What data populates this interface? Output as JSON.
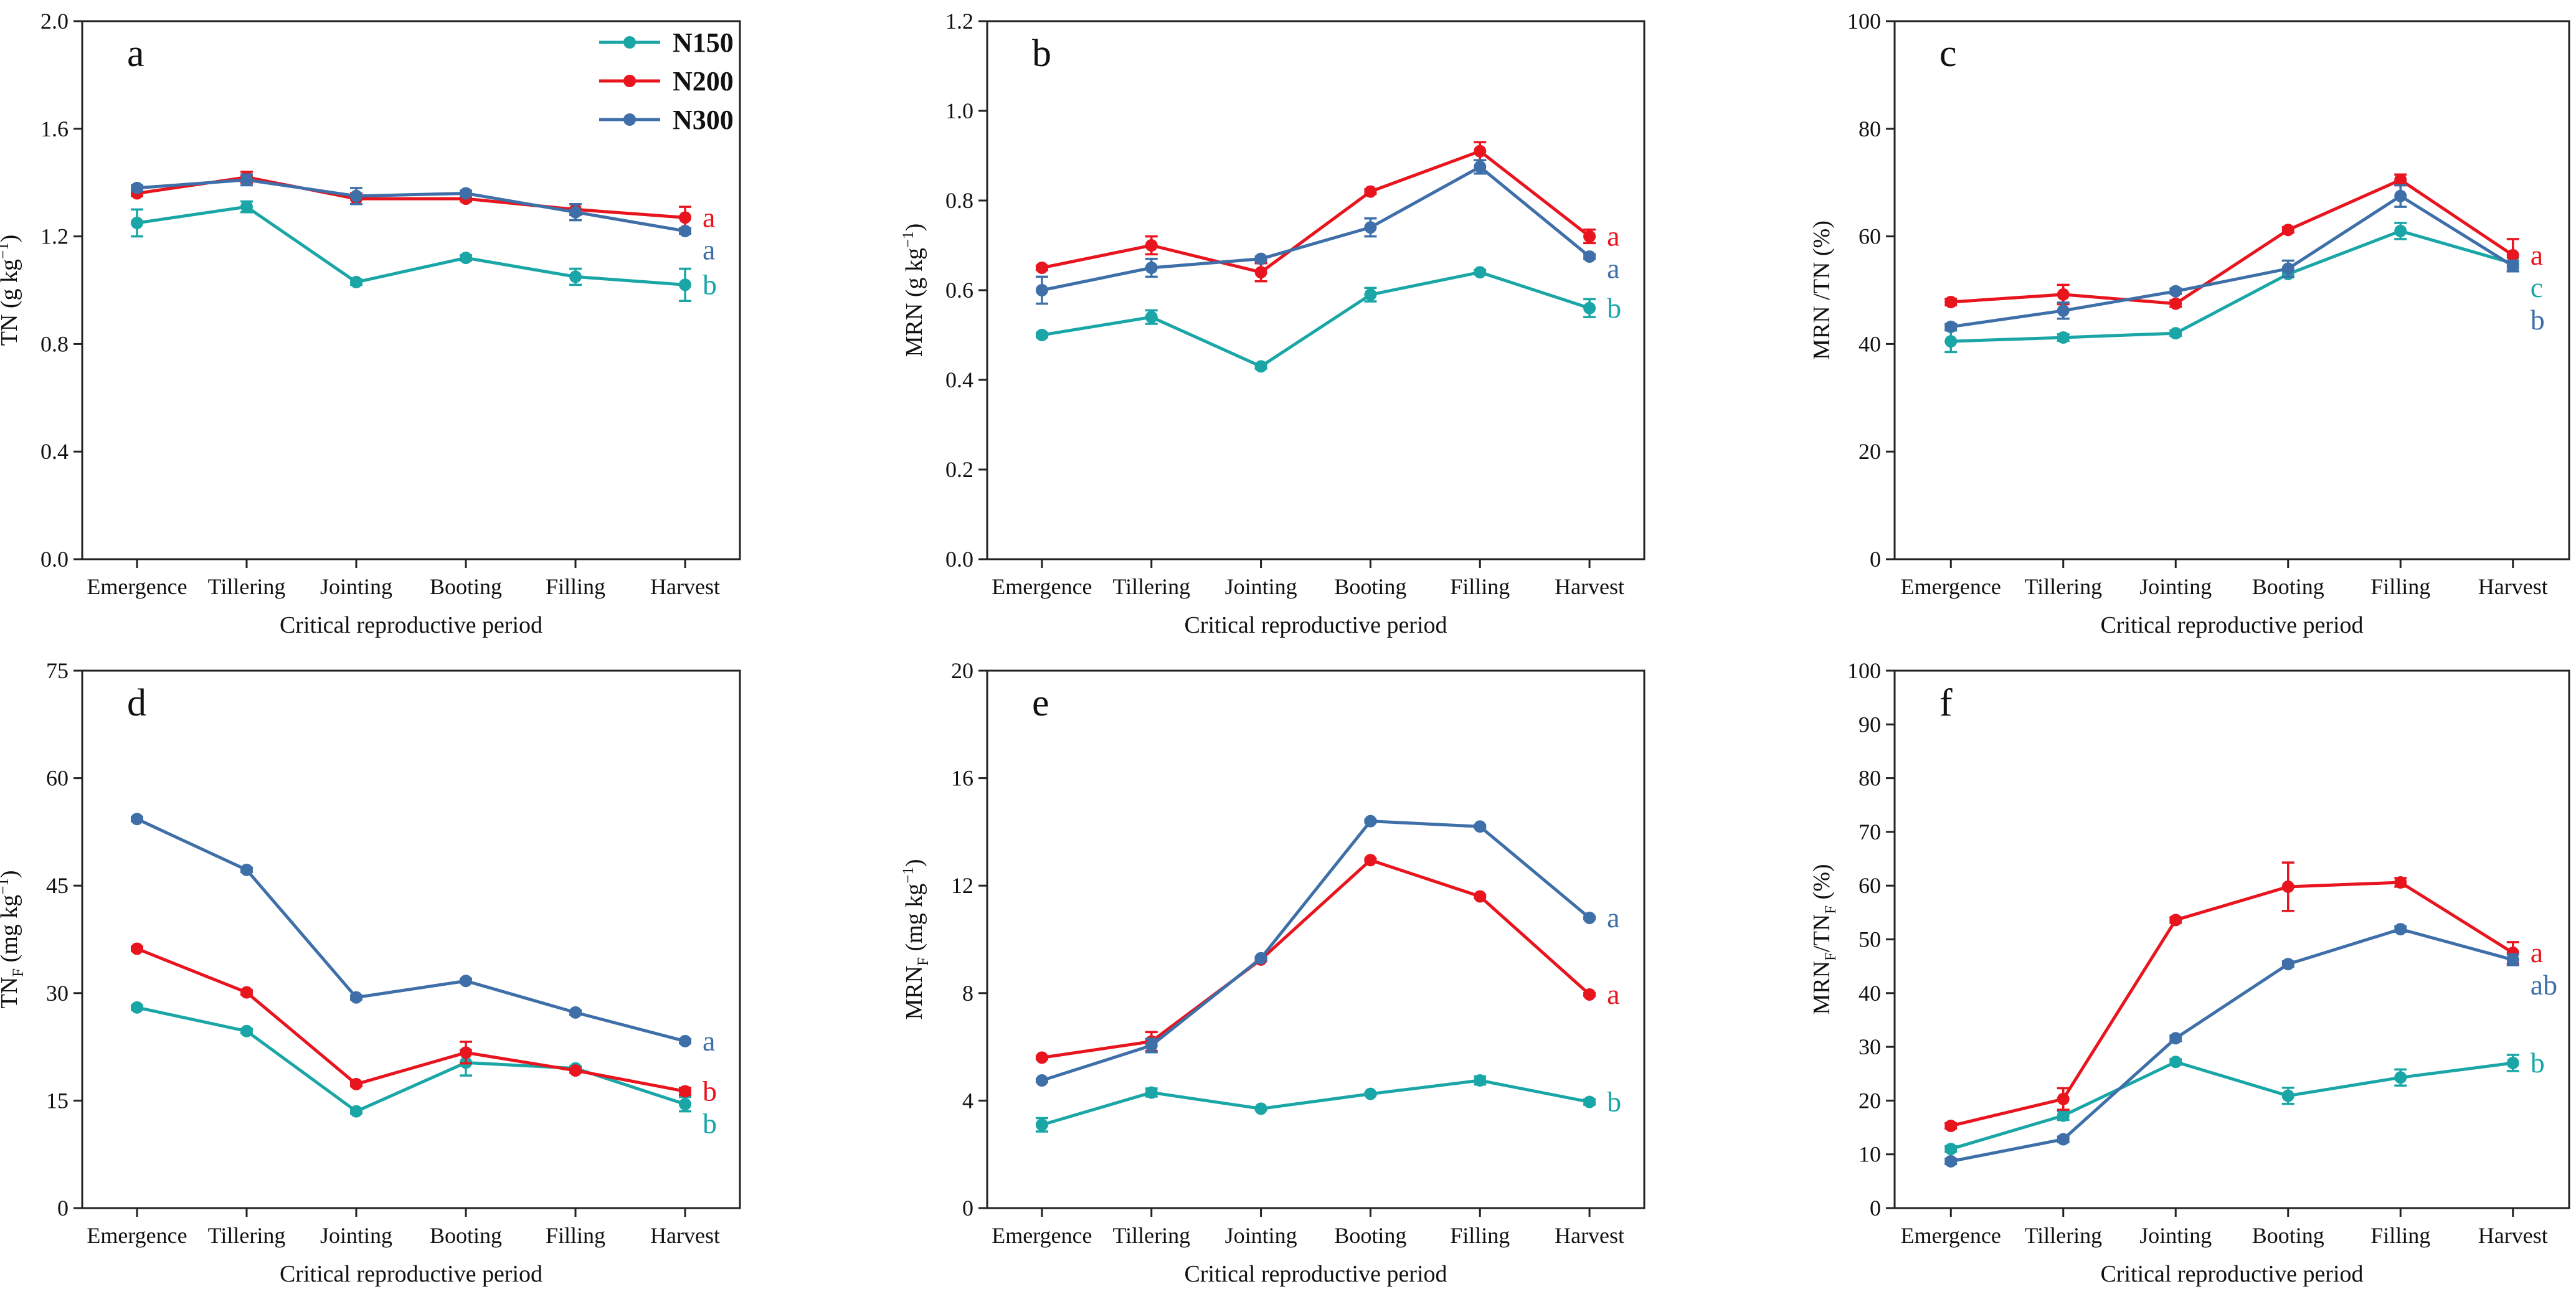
{
  "series_colors": {
    "N150": "#1aa6a6",
    "N200": "#e8141e",
    "N300": "#3e6fa8"
  },
  "legend": [
    "N150",
    "N200",
    "N300"
  ],
  "chart_data": [
    {
      "panel": "a",
      "type": "line",
      "xlabel": "Critical reproductive period",
      "ylabel": "TN (g kg⁻¹)",
      "categories": [
        "Emergence",
        "Tillering",
        "Jointing",
        "Booting",
        "Filling",
        "Harvest"
      ],
      "ylim": [
        0,
        2.0
      ],
      "yticks": [
        "0.0",
        "0.4",
        "0.8",
        "1.2",
        "1.6",
        "2.0"
      ],
      "series": [
        {
          "name": "N150",
          "values": [
            1.25,
            1.31,
            1.03,
            1.12,
            1.05,
            1.02
          ],
          "errors": [
            0.05,
            0.02,
            0.01,
            0.01,
            0.03,
            0.06
          ],
          "sig": "b"
        },
        {
          "name": "N200",
          "values": [
            1.36,
            1.42,
            1.34,
            1.34,
            1.3,
            1.27
          ],
          "errors": [
            0.01,
            0.02,
            0.02,
            0.01,
            0.02,
            0.04
          ],
          "sig": "a"
        },
        {
          "name": "N300",
          "values": [
            1.38,
            1.41,
            1.35,
            1.36,
            1.29,
            1.22
          ],
          "errors": [
            0.01,
            0.02,
            0.03,
            0.01,
            0.03,
            0.01
          ],
          "sig": "a"
        }
      ]
    },
    {
      "panel": "b",
      "type": "line",
      "xlabel": "Critical reproductive period",
      "ylabel": "MRN (g kg⁻¹)",
      "categories": [
        "Emergence",
        "Tillering",
        "Jointing",
        "Booting",
        "Filling",
        "Harvest"
      ],
      "ylim": [
        0,
        1.2
      ],
      "yticks": [
        "0.0",
        "0.2",
        "0.4",
        "0.6",
        "0.8",
        "1.0",
        "1.2"
      ],
      "series": [
        {
          "name": "N150",
          "values": [
            0.5,
            0.54,
            0.43,
            0.59,
            0.64,
            0.56
          ],
          "errors": [
            0.005,
            0.015,
            0.005,
            0.015,
            0.005,
            0.02
          ],
          "sig": "b"
        },
        {
          "name": "N200",
          "values": [
            0.65,
            0.7,
            0.64,
            0.82,
            0.91,
            0.72
          ],
          "errors": [
            0.005,
            0.02,
            0.02,
            0.005,
            0.02,
            0.015
          ],
          "sig": "a"
        },
        {
          "name": "N300",
          "values": [
            0.6,
            0.65,
            0.67,
            0.74,
            0.875,
            0.675
          ],
          "errors": [
            0.03,
            0.02,
            0.005,
            0.02,
            0.015,
            0.005
          ],
          "sig": "a"
        }
      ]
    },
    {
      "panel": "c",
      "type": "line",
      "xlabel": "Critical reproductive period",
      "ylabel": "MRN /TN (%)",
      "categories": [
        "Emergence",
        "Tillering",
        "Jointing",
        "Booting",
        "Filling",
        "Harvest"
      ],
      "ylim": [
        0,
        100
      ],
      "yticks": [
        "0",
        "20",
        "40",
        "60",
        "80",
        "100"
      ],
      "series": [
        {
          "name": "N150",
          "values": [
            40.5,
            41.2,
            42.0,
            53.0,
            61.0,
            55.0
          ],
          "errors": [
            2.0,
            0.6,
            0.5,
            0.6,
            1.5,
            1.0
          ],
          "sig": "c"
        },
        {
          "name": "N200",
          "values": [
            47.8,
            49.2,
            47.5,
            61.2,
            70.5,
            56.5
          ],
          "errors": [
            0.6,
            1.8,
            0.6,
            0.5,
            1.0,
            3.0
          ],
          "sig": "a"
        },
        {
          "name": "N300",
          "values": [
            43.2,
            46.2,
            49.8,
            54.0,
            67.5,
            54.5
          ],
          "errors": [
            0.5,
            1.5,
            0.5,
            1.5,
            2.0,
            1.0
          ],
          "sig": "b"
        }
      ]
    },
    {
      "panel": "d",
      "type": "line",
      "xlabel": "Critical reproductive period",
      "ylabel": "TNF (mg kg⁻¹)",
      "categories": [
        "Emergence",
        "Tillering",
        "Jointing",
        "Booting",
        "Filling",
        "Harvest"
      ],
      "ylim": [
        0,
        75
      ],
      "yticks": [
        "0",
        "15",
        "30",
        "45",
        "60",
        "75"
      ],
      "series": [
        {
          "name": "N150",
          "values": [
            28.0,
            24.7,
            13.5,
            20.3,
            19.5,
            14.5
          ],
          "errors": [
            0.3,
            0.3,
            0.3,
            1.8,
            0.3,
            1.0
          ],
          "sig": "b"
        },
        {
          "name": "N200",
          "values": [
            36.2,
            30.1,
            17.3,
            21.7,
            19.2,
            16.3
          ],
          "errors": [
            0.3,
            0.3,
            0.3,
            1.5,
            0.3,
            0.5
          ],
          "sig": "b"
        },
        {
          "name": "N300",
          "values": [
            54.3,
            47.2,
            29.4,
            31.7,
            27.3,
            23.3
          ],
          "errors": [
            0.3,
            0.3,
            0.3,
            0.3,
            0.3,
            0.3
          ],
          "sig": "a"
        }
      ]
    },
    {
      "panel": "e",
      "type": "line",
      "xlabel": "Critical reproductive period",
      "ylabel": "MRNF (mg kg⁻¹)",
      "categories": [
        "Emergence",
        "Tillering",
        "Jointing",
        "Booting",
        "Filling",
        "Harvest"
      ],
      "ylim": [
        0,
        20
      ],
      "yticks": [
        "0",
        "4",
        "8",
        "12",
        "16",
        "20"
      ],
      "series": [
        {
          "name": "N150",
          "values": [
            3.1,
            4.3,
            3.7,
            4.25,
            4.75,
            3.95
          ],
          "errors": [
            0.25,
            0.15,
            0.05,
            0.05,
            0.15,
            0.1
          ],
          "sig": "b"
        },
        {
          "name": "N200",
          "values": [
            5.6,
            6.2,
            9.25,
            12.95,
            11.6,
            7.95
          ],
          "errors": [
            0.05,
            0.35,
            0.05,
            0.05,
            0.05,
            0.05
          ],
          "sig": "a"
        },
        {
          "name": "N300",
          "values": [
            4.75,
            6.05,
            9.3,
            14.4,
            14.2,
            10.8
          ],
          "errors": [
            0.05,
            0.25,
            0.05,
            0.05,
            0.05,
            0.05
          ],
          "sig": "a"
        }
      ]
    },
    {
      "panel": "f",
      "type": "line",
      "xlabel": "Critical reproductive period",
      "ylabel": "MRNF/TNF (%)",
      "categories": [
        "Emergence",
        "Tillering",
        "Jointing",
        "Booting",
        "Filling",
        "Harvest"
      ],
      "ylim": [
        0,
        100
      ],
      "yticks": [
        "0",
        "10",
        "20",
        "30",
        "40",
        "50",
        "60",
        "70",
        "80",
        "90",
        "100"
      ],
      "series": [
        {
          "name": "N150",
          "values": [
            11.0,
            17.2,
            27.2,
            20.9,
            24.3,
            27.0
          ],
          "errors": [
            0.5,
            0.8,
            0.5,
            1.5,
            1.5,
            1.5
          ],
          "sig": "b"
        },
        {
          "name": "N200",
          "values": [
            15.3,
            20.3,
            53.6,
            59.8,
            60.6,
            47.5
          ],
          "errors": [
            0.5,
            2.0,
            0.5,
            4.5,
            0.8,
            2.0
          ],
          "sig": "a"
        },
        {
          "name": "N300",
          "values": [
            8.7,
            12.8,
            31.6,
            45.4,
            51.9,
            46.2
          ],
          "errors": [
            0.5,
            0.5,
            0.5,
            0.5,
            0.5,
            1.0
          ],
          "sig": "ab"
        }
      ]
    }
  ]
}
